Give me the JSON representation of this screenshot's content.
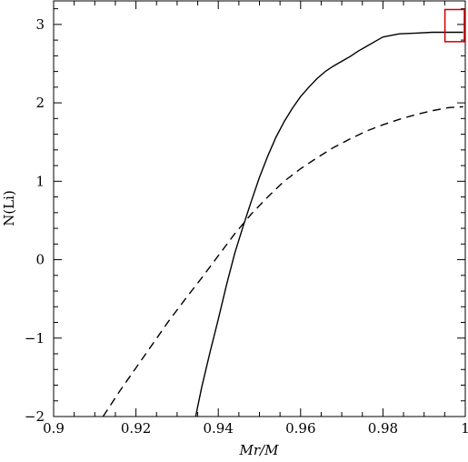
{
  "chart_data": {
    "type": "line",
    "title": "",
    "xlabel": "Mr/M",
    "ylabel": "N(Li)",
    "xlim": [
      0.9,
      1.0
    ],
    "ylim": [
      -2,
      3.3
    ],
    "grid": false,
    "legend": "none",
    "x_ticks": [
      0.9,
      0.92,
      0.94,
      0.96,
      0.98,
      1.0
    ],
    "x_tick_labels": [
      "0.9",
      "0.92",
      "0.94",
      "0.96",
      "0.98",
      "1"
    ],
    "y_ticks": [
      -2,
      -1,
      0,
      1,
      2,
      3
    ],
    "y_tick_labels": [
      "−2",
      "−1",
      "0",
      "1",
      "2",
      "3"
    ],
    "series": [
      {
        "style": "solid",
        "color": "#000000",
        "x": [
          0.9345,
          0.936,
          0.938,
          0.94,
          0.942,
          0.944,
          0.946,
          0.948,
          0.95,
          0.952,
          0.954,
          0.956,
          0.958,
          0.96,
          0.962,
          0.964,
          0.966,
          0.968,
          0.97,
          0.972,
          0.974,
          0.976,
          0.978,
          0.98,
          0.984,
          0.988,
          0.992,
          0.996,
          0.9995
        ],
        "y": [
          -2.0,
          -1.62,
          -1.18,
          -0.76,
          -0.32,
          0.08,
          0.42,
          0.74,
          1.05,
          1.32,
          1.56,
          1.76,
          1.93,
          2.08,
          2.2,
          2.31,
          2.4,
          2.47,
          2.53,
          2.59,
          2.66,
          2.72,
          2.78,
          2.84,
          2.88,
          2.89,
          2.9,
          2.9,
          2.9
        ]
      },
      {
        "style": "dashed",
        "color": "#000000",
        "x": [
          0.912,
          0.916,
          0.92,
          0.924,
          0.928,
          0.932,
          0.936,
          0.94,
          0.944,
          0.948,
          0.952,
          0.956,
          0.96,
          0.964,
          0.968,
          0.972,
          0.976,
          0.98,
          0.984,
          0.988,
          0.992,
          0.996,
          0.9995
        ],
        "y": [
          -2.0,
          -1.68,
          -1.38,
          -1.08,
          -0.78,
          -0.5,
          -0.23,
          0.05,
          0.33,
          0.58,
          0.8,
          1.0,
          1.16,
          1.3,
          1.43,
          1.54,
          1.64,
          1.72,
          1.79,
          1.85,
          1.9,
          1.94,
          1.95
        ]
      }
    ],
    "annotations": [
      {
        "type": "rectangle",
        "color": "#cc0000",
        "x0": 0.9955,
        "x1": 1.0,
        "y0": 2.78,
        "y1": 3.19
      }
    ]
  }
}
